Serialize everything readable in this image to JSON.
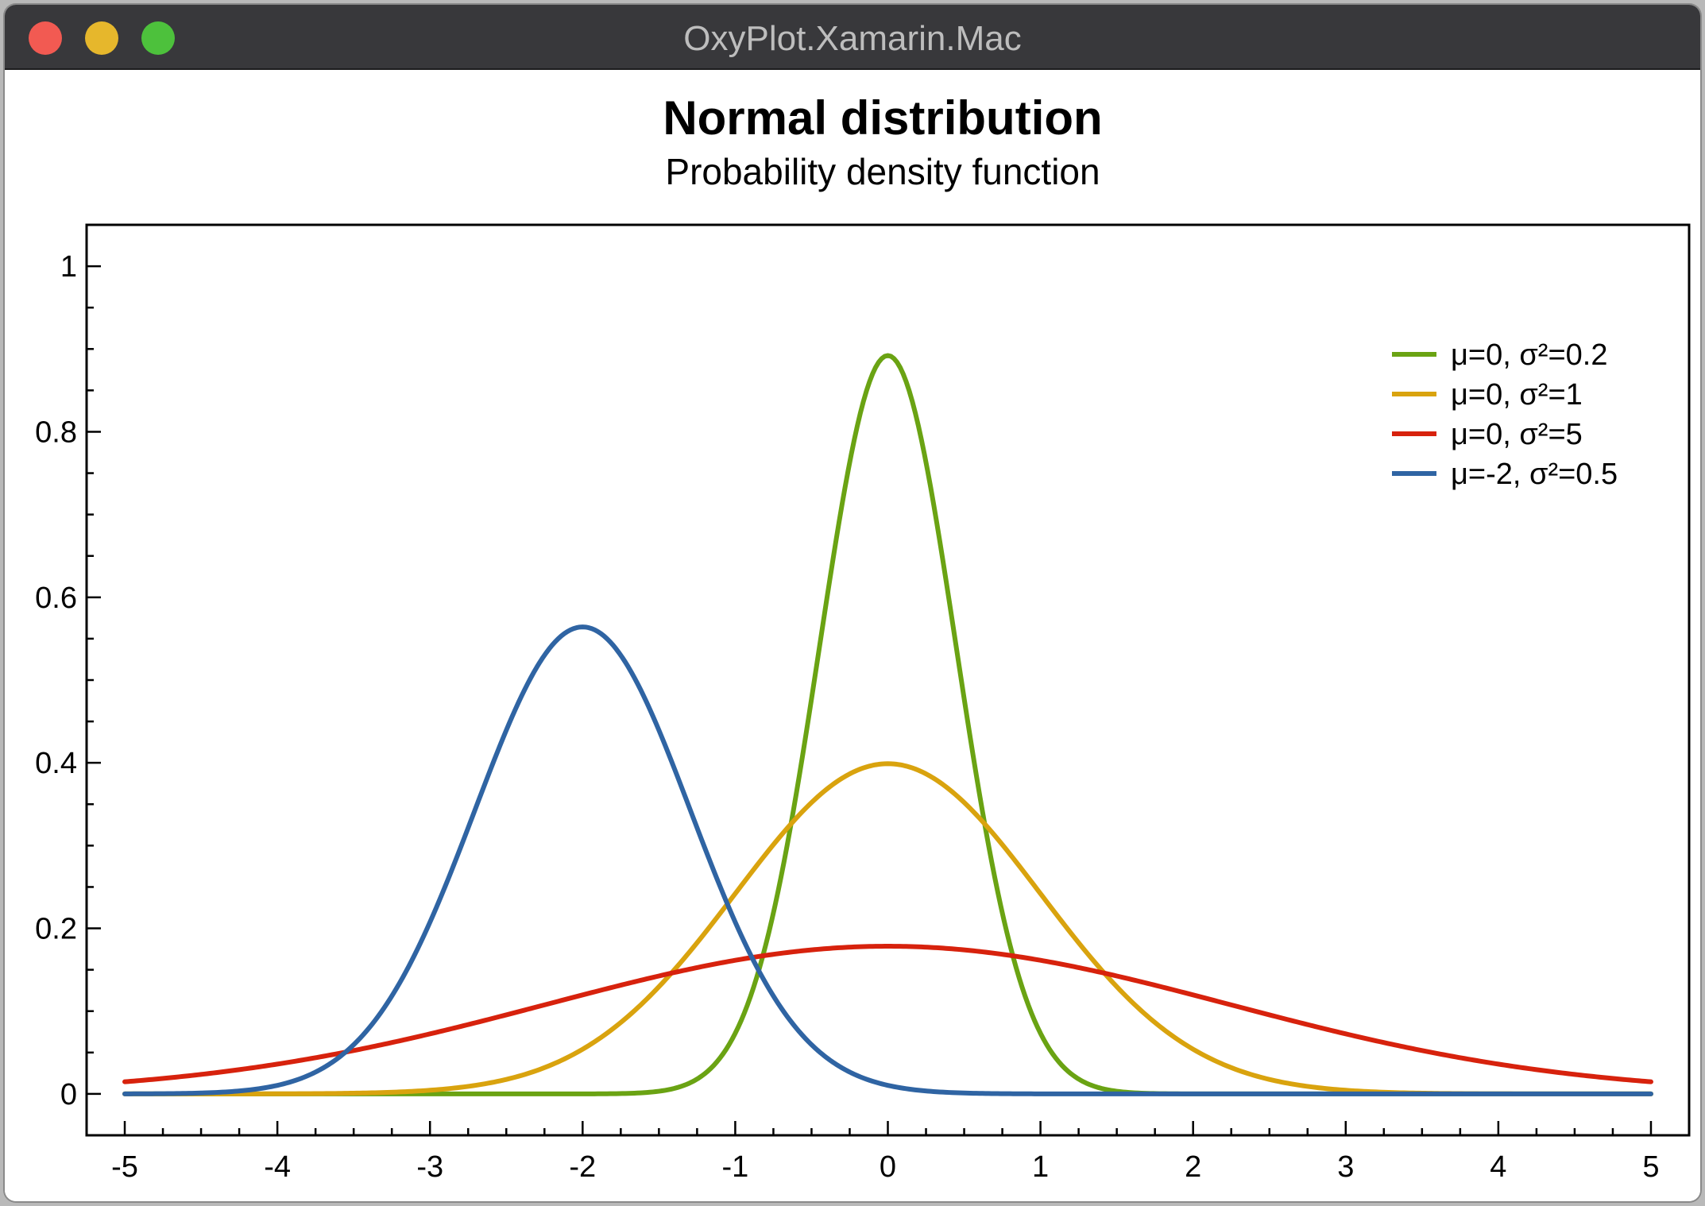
{
  "window": {
    "title": "OxyPlot.Xamarin.Mac",
    "buttons": [
      "close",
      "minimize",
      "zoom"
    ]
  },
  "chart_data": {
    "type": "line",
    "title": "Normal distribution",
    "subtitle": "Probability density function",
    "xlim": [
      -5.25,
      5.25
    ],
    "ylim": [
      -0.05,
      1.05
    ],
    "x_ticks": [
      -5,
      -4,
      -3,
      -2,
      -1,
      0,
      1,
      2,
      3,
      4,
      5
    ],
    "x_tick_labels": [
      "-5",
      "-4",
      "-3",
      "-2",
      "-1",
      "0",
      "1",
      "2",
      "3",
      "4",
      "5"
    ],
    "y_ticks": [
      0,
      0.2,
      0.4,
      0.6,
      0.8,
      1
    ],
    "y_tick_labels": [
      "0",
      "0.2",
      "0.4",
      "0.6",
      "0.8",
      "1"
    ],
    "grid": false,
    "legend_position": "top-right",
    "x": [
      -5,
      -4.5,
      -4,
      -3.5,
      -3,
      -2.5,
      -2,
      -1.5,
      -1,
      -0.5,
      0,
      0.5,
      1,
      1.5,
      2,
      2.5,
      3,
      3.5,
      4,
      4.5,
      5
    ],
    "series": [
      {
        "name": "μ=0, σ²=0.2",
        "color": "#6aa313",
        "mean": 0,
        "variance": 0.2,
        "values": [
          0,
          0,
          0,
          0,
          0,
          0,
          0,
          0,
          0.007,
          0.478,
          0.892,
          0.478,
          0.007,
          0,
          0,
          0,
          0,
          0,
          0,
          0,
          0
        ]
      },
      {
        "name": "μ=0, σ²=1",
        "color": "#d9a30e",
        "mean": 0,
        "variance": 1,
        "values": [
          0,
          0,
          0,
          0.001,
          0.004,
          0.018,
          0.054,
          0.13,
          0.242,
          0.352,
          0.399,
          0.352,
          0.242,
          0.13,
          0.054,
          0.018,
          0.004,
          0.001,
          0,
          0,
          0
        ]
      },
      {
        "name": "μ=0, σ²=5",
        "color": "#d7220d",
        "mean": 0,
        "variance": 5,
        "values": [
          0.015,
          0.023,
          0.036,
          0.052,
          0.073,
          0.095,
          0.12,
          0.143,
          0.161,
          0.174,
          0.178,
          0.174,
          0.161,
          0.143,
          0.12,
          0.095,
          0.073,
          0.052,
          0.036,
          0.023,
          0.015
        ]
      },
      {
        "name": "μ=-2, σ²=0.5",
        "color": "#2f64a3",
        "mean": -2,
        "variance": 0.5,
        "values": [
          0,
          0.001,
          0.01,
          0.059,
          0.208,
          0.439,
          0.564,
          0.439,
          0.208,
          0.059,
          0.01,
          0.001,
          0,
          0,
          0,
          0,
          0,
          0,
          0,
          0,
          0
        ]
      }
    ]
  }
}
